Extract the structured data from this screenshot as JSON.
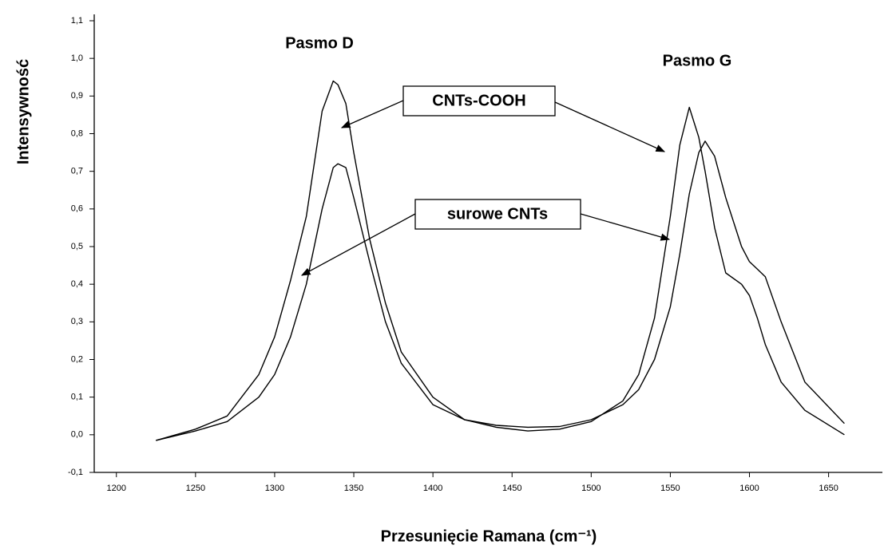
{
  "chart_data": {
    "type": "line",
    "xlabel": "Przesunięcie Ramana (cm⁻¹)",
    "ylabel": "Intensywność",
    "annotations": [
      "Pasmo D",
      "Pasmo G"
    ],
    "x": [
      1225,
      1250,
      1270,
      1290,
      1300,
      1310,
      1320,
      1330,
      1337,
      1340,
      1345,
      1350,
      1360,
      1370,
      1380,
      1400,
      1420,
      1440,
      1460,
      1480,
      1500,
      1520,
      1530,
      1540,
      1550,
      1556,
      1562,
      1568,
      1572,
      1578,
      1585,
      1595,
      1600,
      1605,
      1610,
      1620,
      1635,
      1660
    ],
    "series": [
      {
        "name": "CNTs-COOH",
        "color": "#000000",
        "values": [
          -0.015,
          0.015,
          0.05,
          0.16,
          0.26,
          0.41,
          0.58,
          0.86,
          0.94,
          0.93,
          0.88,
          0.75,
          0.52,
          0.35,
          0.22,
          0.1,
          0.04,
          0.02,
          0.01,
          0.015,
          0.035,
          0.09,
          0.16,
          0.31,
          0.58,
          0.77,
          0.87,
          0.79,
          0.7,
          0.55,
          0.43,
          0.4,
          0.37,
          0.31,
          0.24,
          0.14,
          0.065,
          0.0
        ]
      },
      {
        "name": "surowe CNTs",
        "color": "#000000",
        "values": [
          -0.015,
          0.01,
          0.035,
          0.1,
          0.16,
          0.26,
          0.4,
          0.6,
          0.71,
          0.72,
          0.71,
          0.63,
          0.46,
          0.3,
          0.19,
          0.08,
          0.04,
          0.025,
          0.02,
          0.022,
          0.04,
          0.08,
          0.12,
          0.2,
          0.34,
          0.48,
          0.64,
          0.75,
          0.78,
          0.74,
          0.63,
          0.5,
          0.46,
          0.44,
          0.42,
          0.3,
          0.14,
          0.03
        ]
      }
    ],
    "xlim": [
      1186,
      1684
    ],
    "ylim": [
      -0.1,
      1.1
    ],
    "xticks": [
      1200,
      1250,
      1300,
      1350,
      1400,
      1450,
      1500,
      1550,
      1600,
      1650
    ],
    "yticks": [
      {
        "value": -0.1,
        "label": "-0,1"
      },
      {
        "value": 0.0,
        "label": "0,0"
      },
      {
        "value": 0.1,
        "label": "0,1"
      },
      {
        "value": 0.2,
        "label": "0,2"
      },
      {
        "value": 0.3,
        "label": "0,3"
      },
      {
        "value": 0.4,
        "label": "0,4"
      },
      {
        "value": 0.5,
        "label": "0,5"
      },
      {
        "value": 0.6,
        "label": "0,6"
      },
      {
        "value": 0.7,
        "label": "0,7"
      },
      {
        "value": 0.8,
        "label": "0,8"
      },
      {
        "value": 0.9,
        "label": "0,9"
      },
      {
        "value": 1.0,
        "label": "1,0"
      },
      {
        "value": 1.1,
        "label": "1,1"
      }
    ],
    "grid": false
  }
}
